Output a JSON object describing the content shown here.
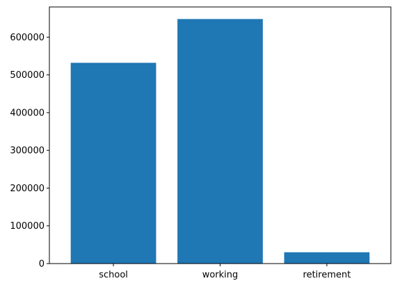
{
  "chart_data": {
    "type": "bar",
    "title": "",
    "xlabel": "",
    "ylabel": "",
    "categories": [
      "school",
      "working",
      "retirement"
    ],
    "values": [
      532000,
      648000,
      30000
    ],
    "ylim": [
      0,
      680000
    ],
    "yticks": [
      0,
      100000,
      200000,
      300000,
      400000,
      500000,
      600000
    ],
    "ytick_labels": [
      "0",
      "100000",
      "200000",
      "300000",
      "400000",
      "500000",
      "600000"
    ],
    "grid": false,
    "legend": "none",
    "bar_color": "#1f77b4"
  }
}
